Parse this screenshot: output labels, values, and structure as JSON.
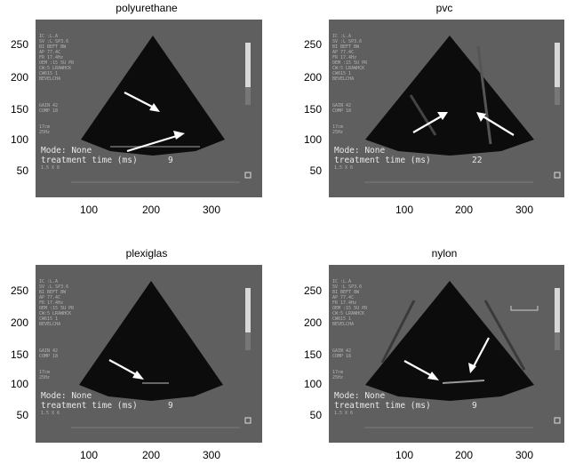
{
  "panels": [
    {
      "title": "polyurethane",
      "mode": "Mode: None",
      "treatment_label": "treatment time (ms)",
      "treatment_value": "9"
    },
    {
      "title": "pvc",
      "mode": "Mode: None",
      "treatment_label": "treatment time (ms)",
      "treatment_value": "22"
    },
    {
      "title": "plexiglas",
      "mode": "Mode: None",
      "treatment_label": "treatment time (ms)",
      "treatment_value": "9"
    },
    {
      "title": "nylon",
      "mode": "Mode: None",
      "treatment_label": "treatment time (ms)",
      "treatment_value": "9"
    }
  ],
  "y_ticks": [
    "250",
    "200",
    "150",
    "100",
    "50"
  ],
  "x_ticks": [
    "100",
    "200",
    "300"
  ],
  "overlay_small": "IC :L.A\nSV :L SP3.6\nBI BEFT BW\nAP 77.4C\nFR 17.4Hz\nOEM :15 5U PR\nCW:5 LRAWHCK\nCW615 1\nBEVELCHA",
  "overlay_gain": "GAIN 42\nCOMP 18",
  "overlay_depth": "17cm\n25Hz",
  "overlay_bottom": "1.5 X 6",
  "colors": {
    "image_bg": "#5f5f5f",
    "sector": "#0c0c0c",
    "text": "#e8e8e8"
  }
}
